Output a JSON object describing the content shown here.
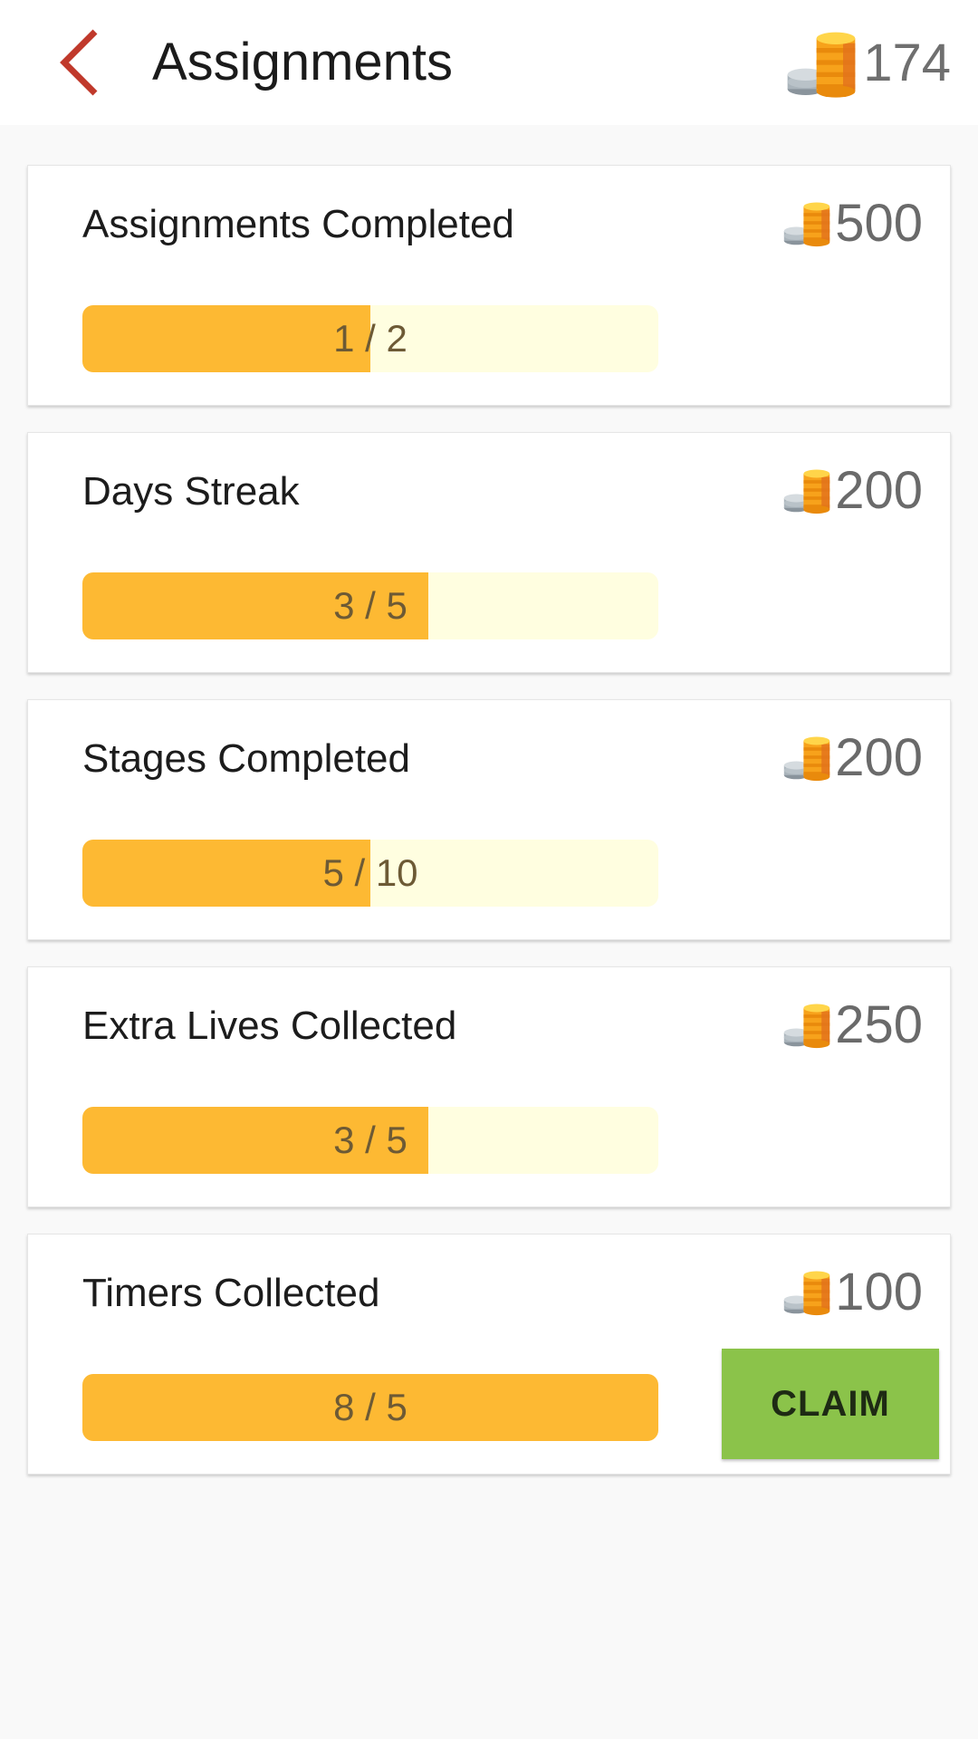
{
  "header": {
    "title": "Assignments",
    "coins": "174",
    "back_icon": "chevron-left-icon",
    "coin_icon": "coin-stack-icon",
    "accent_color": "#c0392b"
  },
  "assignments": [
    {
      "title": "Assignments Completed",
      "reward": "500",
      "progress_text": "1 / 2",
      "progress_fraction": 0.5
    },
    {
      "title": "Days Streak",
      "reward": "200",
      "progress_text": "3 / 5",
      "progress_fraction": 0.6
    },
    {
      "title": "Stages Completed",
      "reward": "200",
      "progress_text": "5 / 10",
      "progress_fraction": 0.5
    },
    {
      "title": "Extra Lives Collected",
      "reward": "250",
      "progress_text": "3 / 5",
      "progress_fraction": 0.6
    },
    {
      "title": "Timers Collected",
      "reward": "100",
      "progress_text": "8 / 5",
      "progress_fraction": 1.0,
      "claim_label": "CLAIM"
    }
  ],
  "colors": {
    "progress_fill": "#fdb933",
    "progress_track": "#fffee0",
    "claim_button": "#8bc34a"
  }
}
